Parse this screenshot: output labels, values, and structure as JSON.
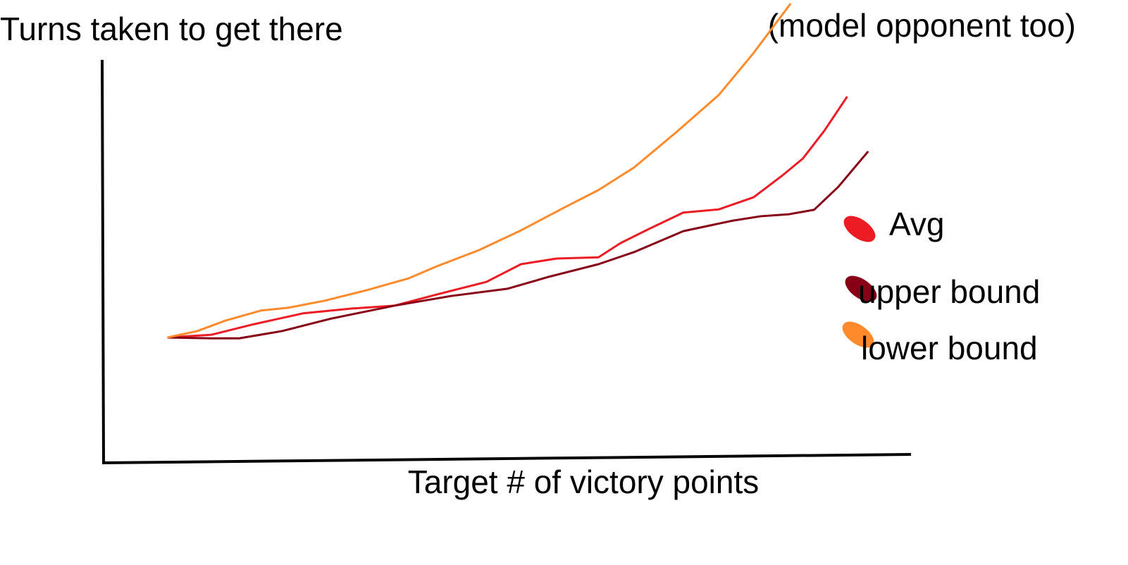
{
  "chart_data": {
    "type": "line",
    "y_label": "Turns taken to get there",
    "x_label": "Target # of victory points",
    "annotation": "(model opponent too)",
    "xlim": [
      0,
      100
    ],
    "ylim": [
      0,
      100
    ],
    "series": [
      {
        "name": "Avg",
        "color": "#ed1c24",
        "x": [
          7.9,
          13.4,
          18.6,
          24.7,
          30.8,
          36.0,
          41.3,
          47.4,
          51.7,
          56.1,
          61.3,
          64.0,
          67.5,
          71.8,
          76.2,
          80.5,
          84.0,
          86.6,
          89.3,
          92.1
        ],
        "values": [
          31.1,
          31.8,
          34.4,
          37.1,
          38.3,
          39.0,
          41.8,
          44.9,
          49.3,
          50.7,
          51.0,
          54.5,
          58.0,
          62.1,
          62.9,
          65.9,
          71.2,
          75.5,
          82.5,
          90.9
        ]
      },
      {
        "name": "upper bound",
        "color": "#880015",
        "x": [
          7.9,
          13.4,
          16.8,
          22.1,
          28.2,
          36.0,
          43.0,
          50.0,
          55.2,
          61.3,
          65.7,
          71.8,
          77.9,
          81.4,
          84.9,
          88.0,
          91.0,
          94.7
        ],
        "values": [
          31.1,
          30.9,
          30.9,
          32.7,
          35.8,
          39.0,
          41.4,
          43.2,
          46.2,
          49.3,
          52.3,
          57.5,
          60.1,
          61.2,
          61.7,
          62.8,
          68.5,
          77.3
        ]
      },
      {
        "name": "lower bound",
        "color": "#ff8a2b",
        "x": [
          7.9,
          11.6,
          15.1,
          19.5,
          22.9,
          27.3,
          32.5,
          37.8,
          41.3,
          46.5,
          51.7,
          57.0,
          61.3,
          65.7,
          70.9,
          76.2,
          80.5,
          85.1
        ],
        "values": [
          31.1,
          32.7,
          35.3,
          37.8,
          38.5,
          40.2,
          42.8,
          45.8,
          48.8,
          52.8,
          57.7,
          63.3,
          67.7,
          73.3,
          82.0,
          91.3,
          101.7,
          114.0
        ]
      }
    ]
  }
}
